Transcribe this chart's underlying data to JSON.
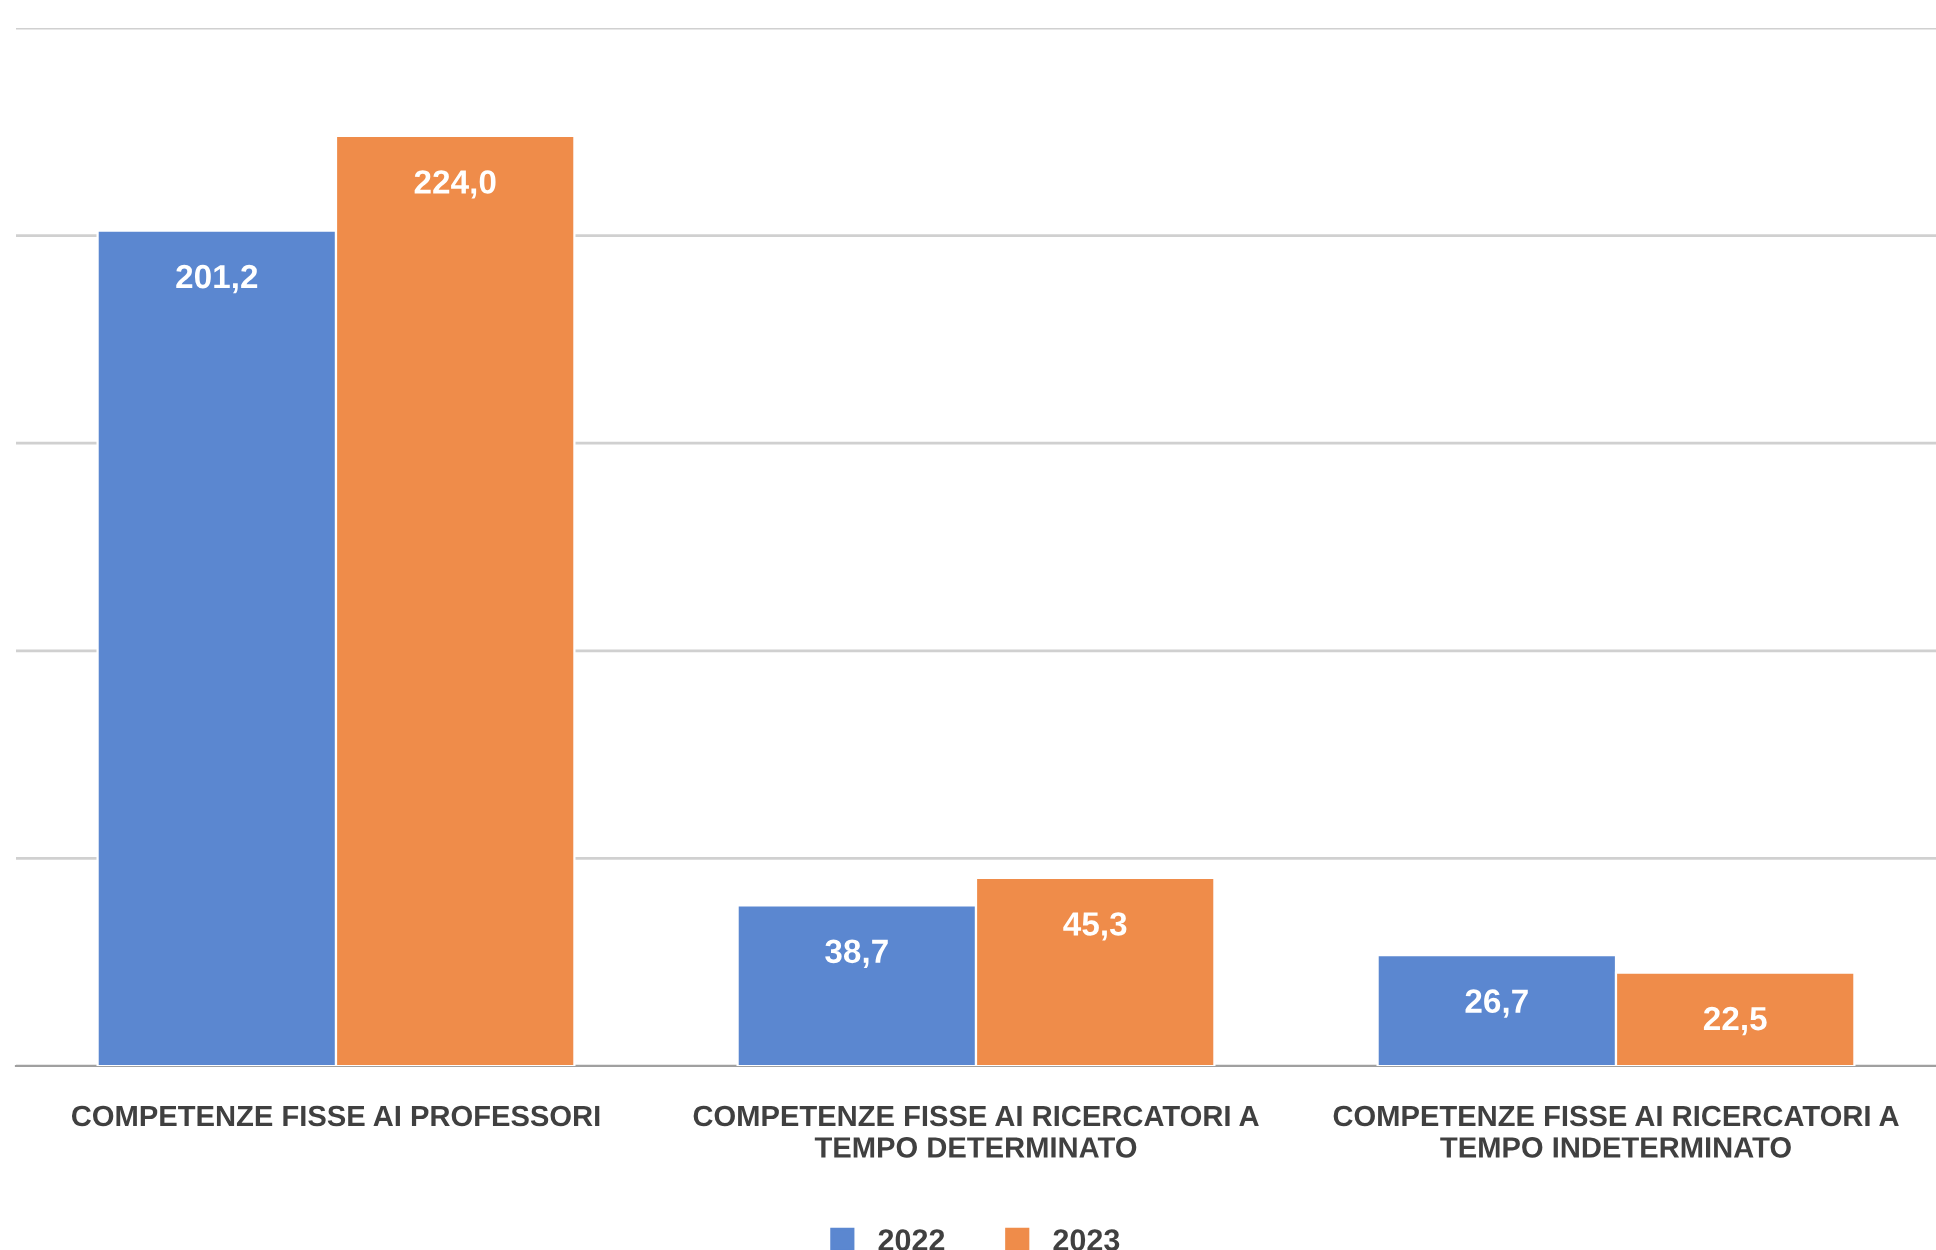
{
  "chart_data": {
    "type": "bar",
    "categories": [
      "COMPETENZE FISSE AI PROFESSORI",
      "COMPETENZE FISSE AI RICERCATORI A\nTEMPO DETERMINATO",
      "COMPETENZE FISSE AI RICERCATORI A\nTEMPO INDETERMINATO"
    ],
    "series": [
      {
        "name": "2022",
        "color": "#5b87d0",
        "values": [
          201.2,
          38.7,
          26.7
        ],
        "value_labels": [
          "201,2",
          "38,7",
          "26,7"
        ]
      },
      {
        "name": "2023",
        "color": "#ef8c4a",
        "values": [
          224.0,
          45.3,
          22.5
        ],
        "value_labels": [
          "224,0",
          "45,3",
          "22,5"
        ]
      }
    ],
    "ylim": [
      0,
      250
    ],
    "yticks": [
      {
        "value": 0,
        "label": null
      },
      {
        "value": 50,
        "label": null
      },
      {
        "value": 100,
        "label": null
      },
      {
        "value": 150,
        "label": null
      },
      {
        "value": 200,
        "label": null
      },
      {
        "value": 250,
        "label": null
      }
    ],
    "grid": "y",
    "legend": "bottom",
    "tick_labels": "x"
  }
}
